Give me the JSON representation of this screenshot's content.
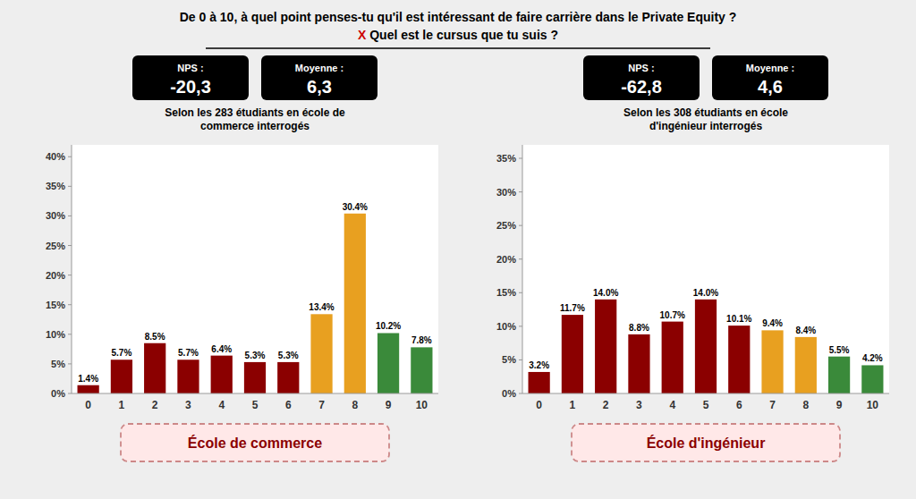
{
  "title": "De 0 à 10, à quel point penses-tu qu'il est intéressant de faire carrière dans le Private Equity ?",
  "subtitle": "X Quel est le cursus que tu suis ?",
  "chart_data": [
    {
      "type": "bar",
      "title": "Selon les 283 étudiants en école de\ncommerce interrogés",
      "xlabel": "École de commerce",
      "annotations": [
        {
          "label": "NPS :",
          "text": "-20,3"
        },
        {
          "label": "Moyenne :",
          "text": "6,3"
        }
      ],
      "categories": [
        0,
        1,
        2,
        3,
        4,
        5,
        6,
        7,
        8,
        9,
        10
      ],
      "values": [
        1.4,
        5.7,
        8.5,
        5.7,
        6.4,
        5.3,
        5.3,
        13.4,
        30.4,
        10.2,
        7.8
      ],
      "value_labels": [
        "1.4%",
        "5.7%",
        "8.5%",
        "5.7%",
        "6.4%",
        "5.3%",
        "5.3%",
        "13.4%",
        "30.4%",
        "10.2%",
        "7.8%"
      ],
      "colors": [
        "#8B0000",
        "#8B0000",
        "#8B0000",
        "#8B0000",
        "#8B0000",
        "#8B0000",
        "#8B0000",
        "#E8A020",
        "#E8A020",
        "#3A8A3A",
        "#3A8A3A"
      ],
      "data_labels": true,
      "ylim": [
        0,
        42
      ],
      "yticks": [
        {
          "value": 0,
          "label": "0%"
        },
        {
          "value": 5,
          "label": "5%"
        },
        {
          "value": 10,
          "label": "10%"
        },
        {
          "value": 15,
          "label": "15%"
        },
        {
          "value": 20,
          "label": "20%"
        },
        {
          "value": 25,
          "label": "25%"
        },
        {
          "value": 30,
          "label": "30%"
        },
        {
          "value": 35,
          "label": "35%"
        },
        {
          "value": 40,
          "label": "40%"
        }
      ]
    },
    {
      "type": "bar",
      "title": "Selon les 308 étudiants en école\nd'ingénieur interrogés",
      "xlabel": "École d'ingénieur",
      "annotations": [
        {
          "label": "NPS :",
          "text": "-62,8"
        },
        {
          "label": "Moyenne :",
          "text": "4,6"
        }
      ],
      "categories": [
        0,
        1,
        2,
        3,
        4,
        5,
        6,
        7,
        8,
        9,
        10
      ],
      "values": [
        3.2,
        11.7,
        14.0,
        8.8,
        10.7,
        14.0,
        10.1,
        9.4,
        8.4,
        5.5,
        4.2
      ],
      "value_labels": [
        "3.2%",
        "11.7%",
        "14.0%",
        "8.8%",
        "10.7%",
        "14.0%",
        "10.1%",
        "9.4%",
        "8.4%",
        "5.5%",
        "4.2%"
      ],
      "colors": [
        "#8B0000",
        "#8B0000",
        "#8B0000",
        "#8B0000",
        "#8B0000",
        "#8B0000",
        "#8B0000",
        "#E8A020",
        "#E8A020",
        "#3A8A3A",
        "#3A8A3A"
      ],
      "data_labels": true,
      "ylim": [
        0,
        37
      ],
      "yticks": [
        {
          "value": 0,
          "label": "0%"
        },
        {
          "value": 5,
          "label": "5%"
        },
        {
          "value": 10,
          "label": "10%"
        },
        {
          "value": 15,
          "label": "15%"
        },
        {
          "value": 20,
          "label": "20%"
        },
        {
          "value": 25,
          "label": "25%"
        },
        {
          "value": 30,
          "label": "30%"
        },
        {
          "value": 35,
          "label": "35%"
        }
      ]
    }
  ]
}
